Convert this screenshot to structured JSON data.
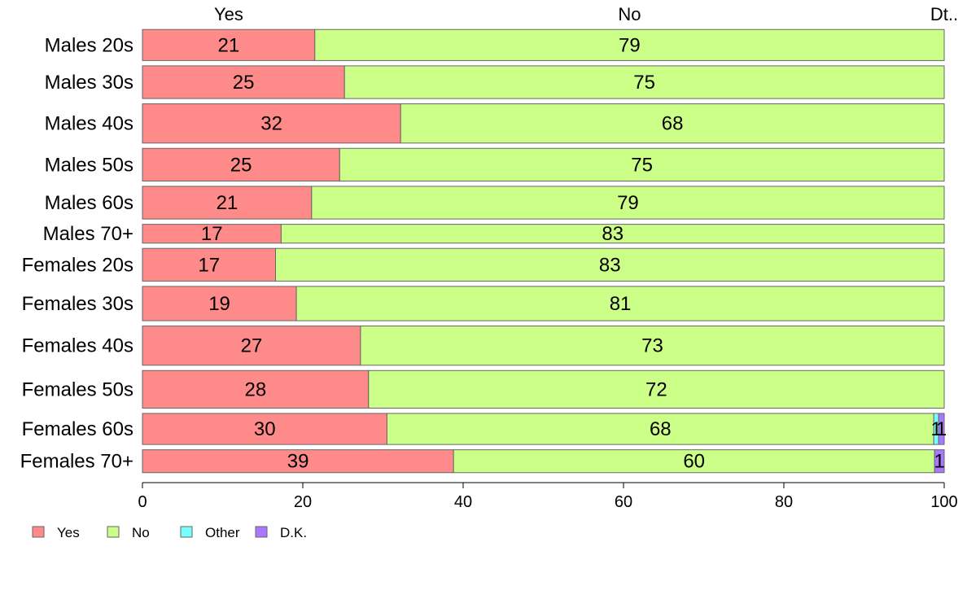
{
  "chart_data": {
    "type": "bar",
    "orientation": "horizontal",
    "stacked": true,
    "top_labels": [
      "Yes",
      "No",
      "Dt.."
    ],
    "categories": [
      "Males 20s",
      "Males 30s",
      "Males 40s",
      "Males 50s",
      "Males 60s",
      "Males 70+",
      "Females 20s",
      "Females 30s",
      "Females 40s",
      "Females 50s",
      "Females 60s",
      "Females 70+"
    ],
    "series": [
      {
        "name": "Yes",
        "color": "#FF8A8A",
        "values": [
          21.5,
          25.2,
          32.2,
          24.6,
          21.1,
          17.3,
          16.6,
          19.2,
          27.2,
          28.2,
          30.5,
          38.8
        ]
      },
      {
        "name": "No",
        "color": "#CCFF88",
        "values": [
          78.5,
          74.8,
          67.8,
          75.4,
          78.9,
          82.7,
          83.4,
          80.8,
          72.8,
          71.8,
          68.2,
          60.0
        ]
      },
      {
        "name": "Other",
        "color": "#77FFFF",
        "values": [
          0,
          0,
          0,
          0,
          0,
          0,
          0,
          0,
          0,
          0,
          0.6,
          0
        ]
      },
      {
        "name": "D.K.",
        "color": "#AA77FF",
        "values": [
          0,
          0,
          0,
          0,
          0,
          0,
          0,
          0,
          0,
          0,
          0.7,
          1.2
        ]
      }
    ],
    "labels": [
      [
        "21",
        "79",
        "",
        ""
      ],
      [
        "25",
        "75",
        "",
        ""
      ],
      [
        "32",
        "68",
        "",
        ""
      ],
      [
        "25",
        "75",
        "",
        ""
      ],
      [
        "21",
        "79",
        "",
        ""
      ],
      [
        "17",
        "83",
        "",
        ""
      ],
      [
        "17",
        "83",
        "",
        ""
      ],
      [
        "19",
        "81",
        "",
        ""
      ],
      [
        "27",
        "73",
        "",
        ""
      ],
      [
        "28",
        "72",
        "",
        ""
      ],
      [
        "30",
        "68",
        "1",
        "1"
      ],
      [
        "39",
        "60",
        "",
        "1"
      ]
    ],
    "bar_weights": [
      0.76,
      0.8,
      0.96,
      0.8,
      0.8,
      0.46,
      0.8,
      0.84,
      0.96,
      0.92,
      0.76,
      0.56
    ],
    "xlim": [
      0,
      100
    ],
    "xticks": [
      0,
      20,
      40,
      60,
      80,
      100
    ],
    "xlabel": "",
    "ylabel": "",
    "legend": {
      "position": "bottom-left",
      "items": [
        "Yes",
        "No",
        "Other",
        "D.K."
      ]
    },
    "grid": false
  }
}
